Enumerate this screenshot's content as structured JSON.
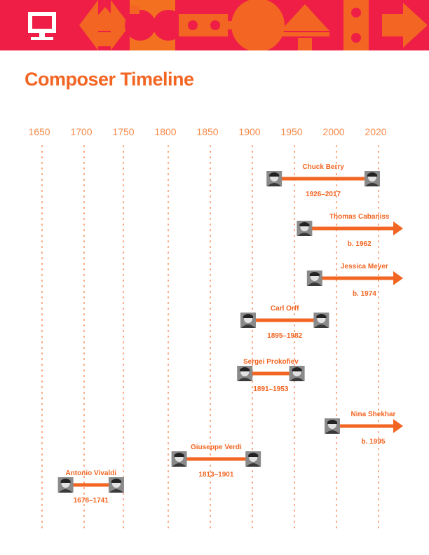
{
  "header": {
    "icon": "computer-monitor-icon",
    "banner_color": "#ee1e46",
    "pattern_color": "#f26522"
  },
  "title": "Composer Timeline",
  "accent_color": "#f26522",
  "axis_label_color": "#f58a4a",
  "years": [
    "1650",
    "1700",
    "1750",
    "1800",
    "1850",
    "1900",
    "1950",
    "2000",
    "2020"
  ],
  "composers": [
    {
      "id": "chuck-berry",
      "name": "Chuck Berry",
      "dates": "1926–2017",
      "birth": 1926,
      "death": 2017,
      "living": false
    },
    {
      "id": "thomas-cabaniss",
      "name": "Thomas Cabaniss",
      "dates": "b. 1962",
      "birth": 1962,
      "death": null,
      "living": true
    },
    {
      "id": "jessica-meyer",
      "name": "Jessica Meyer",
      "dates": "b. 1974",
      "birth": 1974,
      "death": null,
      "living": true
    },
    {
      "id": "carl-orff",
      "name": "Carl Orff",
      "dates": "1895–1982",
      "birth": 1895,
      "death": 1982,
      "living": false
    },
    {
      "id": "sergei-prokofiev",
      "name": "Sergei Prokofiev",
      "dates": "1891–1953",
      "birth": 1891,
      "death": 1953,
      "living": false
    },
    {
      "id": "nina-shekhar",
      "name": "Nina Shekhar",
      "dates": "b. 1995",
      "birth": 1995,
      "death": null,
      "living": true
    },
    {
      "id": "giuseppe-verdi",
      "name": "Giuseppe Verdi",
      "dates": "1813–1901",
      "birth": 1813,
      "death": 1901,
      "living": false
    },
    {
      "id": "antonio-vivaldi",
      "name": "Antonio Vivaldi",
      "dates": "1678–1741",
      "birth": 1678,
      "death": 1741,
      "living": false
    }
  ]
}
